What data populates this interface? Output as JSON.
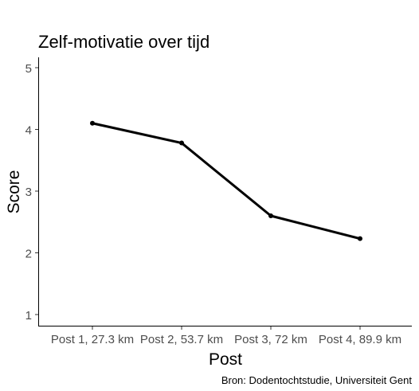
{
  "chart_data": {
    "type": "line",
    "title": "Zelf-motivatie over tijd",
    "xlabel": "Post",
    "ylabel": "Score",
    "caption": "Bron: Dodentochtstudie, Universiteit Gent",
    "categories": [
      "Post 1, 27.3 km",
      "Post 2, 53.7 km",
      "Post 3, 72 km",
      "Post 4, 89.9 km"
    ],
    "values": [
      4.1,
      3.78,
      2.6,
      2.23
    ],
    "ylim": [
      1,
      5
    ],
    "yticks": [
      "1",
      "2",
      "3",
      "4",
      "5"
    ],
    "grid": false,
    "legend": "none",
    "line_color": "#000000",
    "ci_color": "#e6e6e6"
  }
}
